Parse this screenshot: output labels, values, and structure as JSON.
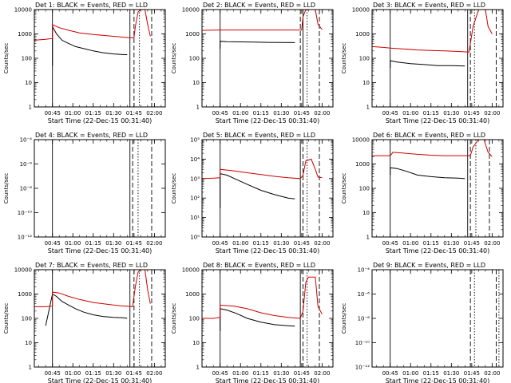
{
  "chart_data": [
    {
      "type": "line",
      "title": "Det 1: BLACK = Events, RED = LLD",
      "xlabel": "Start Time (22-Dec-15 00:31:40)",
      "ylabel": "Counts/sec",
      "yscale": "log",
      "ylim": [
        1,
        10000
      ],
      "ytick_labels": [
        "1",
        "10",
        "100",
        "1000",
        "10000"
      ],
      "xlim": [
        "00:31:40",
        "02:08:00"
      ],
      "xtick_labels": [
        "00:45",
        "01:00",
        "01:15",
        "01:30",
        "01:45",
        "02:00"
      ],
      "grid": false,
      "series": [
        {
          "name": "Events",
          "color": "#000000",
          "x": [
            "00:45",
            "00:45",
            "00:48",
            "00:52",
            "00:57",
            "01:02",
            "01:08",
            "01:15",
            "01:22",
            "01:30",
            "01:38",
            "01:40"
          ],
          "values": [
            50,
            2000,
            1000,
            550,
            400,
            300,
            250,
            200,
            170,
            150,
            140,
            140
          ]
        },
        {
          "name": "LLD",
          "color": "#cc0000",
          "x": [
            "00:31:40",
            "00:40",
            "00:45",
            "00:45",
            "00:50",
            "00:57",
            "01:05",
            "01:15",
            "01:25",
            "01:35",
            "01:42",
            "01:45",
            "01:46",
            "01:48",
            "01:50",
            "01:53",
            "01:55",
            "01:57"
          ],
          "values": [
            550,
            600,
            650,
            2400,
            1800,
            1400,
            1100,
            950,
            850,
            750,
            700,
            700,
            2000,
            8000,
            11000,
            11000,
            2500,
            800
          ]
        }
      ],
      "vlines": [
        {
          "x": "00:45",
          "style": "solid"
        },
        {
          "x": "01:42",
          "style": "solid"
        },
        {
          "x": "01:45",
          "style": "dashed"
        },
        {
          "x": "01:49",
          "style": "dotted"
        },
        {
          "x": "01:58",
          "style": "dashed"
        }
      ]
    },
    {
      "type": "line",
      "title": "Det 2: BLACK = Events, RED = LLD",
      "xlabel": "Start Time (22-Dec-15 00:31:40)",
      "ylabel": "Counts/sec",
      "yscale": "log",
      "ylim": [
        1,
        10000
      ],
      "ytick_labels": [
        "1",
        "10",
        "100",
        "1000",
        "10000"
      ],
      "xlim": [
        "00:31:40",
        "02:08:00"
      ],
      "xtick_labels": [
        "00:45",
        "01:00",
        "01:15",
        "01:30",
        "01:45",
        "02:00"
      ],
      "grid": false,
      "series": [
        {
          "name": "Events",
          "color": "#000000",
          "x": [
            "00:45",
            "00:45",
            "00:50",
            "01:00",
            "01:10",
            "01:20",
            "01:30",
            "01:40"
          ],
          "values": [
            250,
            500,
            480,
            470,
            460,
            450,
            445,
            440
          ]
        },
        {
          "name": "LLD",
          "color": "#cc0000",
          "x": [
            "00:31:40",
            "00:45",
            "01:00",
            "01:15",
            "01:30",
            "01:45",
            "01:46",
            "01:48",
            "01:50",
            "01:55",
            "01:57",
            "02:00"
          ],
          "values": [
            1400,
            1450,
            1450,
            1450,
            1450,
            1450,
            5000,
            15000,
            15000,
            15000,
            2500,
            1500
          ]
        }
      ],
      "vlines": [
        {
          "x": "00:45",
          "style": "solid"
        },
        {
          "x": "01:44",
          "style": "dashed"
        },
        {
          "x": "01:46",
          "style": "solid"
        },
        {
          "x": "01:49",
          "style": "dotted"
        },
        {
          "x": "01:58",
          "style": "dashed"
        }
      ]
    },
    {
      "type": "line",
      "title": "Det 3: BLACK = Events, RED = LLD",
      "xlabel": "Start Time (22-Dec-15 00:31:40)",
      "ylabel": "Counts/sec",
      "yscale": "log",
      "ylim": [
        1,
        10000
      ],
      "ytick_labels": [
        "1",
        "10",
        "100",
        "1000",
        "10000"
      ],
      "xlim": [
        "00:31:40",
        "02:08:00"
      ],
      "xtick_labels": [
        "00:45",
        "01:00",
        "01:15",
        "01:30",
        "01:45",
        "02:00"
      ],
      "grid": false,
      "series": [
        {
          "name": "Events",
          "color": "#000000",
          "x": [
            "00:45",
            "00:45",
            "00:50",
            "01:00",
            "01:10",
            "01:20",
            "01:30",
            "01:40"
          ],
          "values": [
            40,
            80,
            70,
            60,
            55,
            50,
            50,
            48
          ]
        },
        {
          "name": "LLD",
          "color": "#cc0000",
          "x": [
            "00:31:40",
            "00:40",
            "00:45",
            "00:55",
            "01:05",
            "01:15",
            "01:25",
            "01:35",
            "01:43",
            "01:46",
            "01:50",
            "01:55",
            "01:57",
            "02:00"
          ],
          "values": [
            300,
            280,
            260,
            240,
            220,
            210,
            200,
            190,
            180,
            2000,
            15000,
            15000,
            2000,
            1000
          ]
        }
      ],
      "vlines": [
        {
          "x": "00:45",
          "style": "solid"
        },
        {
          "x": "01:42",
          "style": "solid"
        },
        {
          "x": "01:44",
          "style": "dashed"
        },
        {
          "x": "01:47",
          "style": "dotted"
        },
        {
          "x": "02:03",
          "style": "dashed"
        }
      ]
    },
    {
      "type": "line",
      "title": "Det 4: BLACK = Events, RED = LLD",
      "xlabel": "Start Time (22-Dec-15 00:31:40)",
      "ylabel": "Counts/sec",
      "yscale": "log",
      "ylim": [
        1e-12,
        0.0001
      ],
      "ytick_labels": [
        "10⁻¹²",
        "10⁻¹⁰",
        "10⁻⁸",
        "10⁻⁶",
        "10⁻⁴"
      ],
      "xlim": [
        "00:31:40",
        "02:08:00"
      ],
      "xtick_labels": [
        "00:45",
        "01:00",
        "01:15",
        "01:30",
        "01:45",
        "02:00"
      ],
      "grid": false,
      "series": [],
      "vlines": [
        {
          "x": "00:45",
          "style": "solid"
        },
        {
          "x": "01:42",
          "style": "solid"
        },
        {
          "x": "01:44",
          "style": "dashed"
        },
        {
          "x": "01:48",
          "style": "dotted"
        },
        {
          "x": "01:58",
          "style": "dashed"
        }
      ]
    },
    {
      "type": "line",
      "title": "Det 5: BLACK = Events, RED = LLD",
      "xlabel": "Start Time (22-Dec-15 00:31:40)",
      "ylabel": "Counts/sec",
      "yscale": "log",
      "ylim": [
        1,
        100000
      ],
      "ytick_labels": [
        "10⁰",
        "10¹",
        "10²",
        "10³",
        "10⁴",
        "10⁵"
      ],
      "xlim": [
        "00:31:40",
        "02:08:00"
      ],
      "xtick_labels": [
        "00:45",
        "01:00",
        "01:15",
        "01:30",
        "01:45",
        "02:00"
      ],
      "grid": false,
      "series": [
        {
          "name": "Events",
          "color": "#000000",
          "x": [
            "00:45",
            "00:45",
            "00:50",
            "00:57",
            "01:05",
            "01:15",
            "01:25",
            "01:35",
            "01:40"
          ],
          "values": [
            30,
            1800,
            1500,
            900,
            500,
            250,
            150,
            100,
            90
          ]
        },
        {
          "name": "LLD",
          "color": "#cc0000",
          "x": [
            "00:31:40",
            "00:40",
            "00:45",
            "00:45",
            "00:55",
            "01:05",
            "01:15",
            "01:25",
            "01:35",
            "01:44",
            "01:46",
            "01:48",
            "01:52",
            "01:55",
            "01:57",
            "02:00"
          ],
          "values": [
            1000,
            1050,
            1100,
            3000,
            2500,
            2000,
            1600,
            1300,
            1100,
            1000,
            1500,
            8000,
            10000,
            3000,
            1200,
            1100
          ]
        }
      ],
      "vlines": [
        {
          "x": "00:45",
          "style": "solid"
        },
        {
          "x": "01:44",
          "style": "solid"
        },
        {
          "x": "01:46",
          "style": "dashed"
        },
        {
          "x": "01:49",
          "style": "dotted"
        },
        {
          "x": "01:58",
          "style": "dashed"
        }
      ]
    },
    {
      "type": "line",
      "title": "Det 6: BLACK = Events, RED = LLD",
      "xlabel": "Start Time (22-Dec-15 00:31:40)",
      "ylabel": "Counts/sec",
      "yscale": "log",
      "ylim": [
        1,
        10000
      ],
      "ytick_labels": [
        "1",
        "10",
        "100",
        "1000",
        "10000"
      ],
      "xlim": [
        "00:31:40",
        "02:08:00"
      ],
      "xtick_labels": [
        "00:45",
        "01:00",
        "01:15",
        "01:30",
        "01:45",
        "02:00"
      ],
      "grid": false,
      "series": [
        {
          "name": "Events",
          "color": "#000000",
          "x": [
            "00:45",
            "00:45",
            "00:50",
            "00:57",
            "01:05",
            "01:15",
            "01:25",
            "01:35",
            "01:40"
          ],
          "values": [
            350,
            700,
            650,
            500,
            350,
            300,
            270,
            260,
            250
          ]
        },
        {
          "name": "LLD",
          "color": "#cc0000",
          "x": [
            "00:31:40",
            "00:45",
            "00:47",
            "00:55",
            "01:05",
            "01:15",
            "01:25",
            "01:35",
            "01:44",
            "01:46",
            "01:50",
            "01:54",
            "01:57",
            "02:00"
          ],
          "values": [
            2200,
            2200,
            3000,
            2800,
            2500,
            2300,
            2200,
            2200,
            2200,
            5000,
            10000,
            10000,
            3000,
            2000
          ]
        }
      ],
      "vlines": [
        {
          "x": "00:45",
          "style": "solid"
        },
        {
          "x": "01:42",
          "style": "solid"
        },
        {
          "x": "01:44",
          "style": "dashed"
        },
        {
          "x": "01:48",
          "style": "dotted"
        },
        {
          "x": "01:58",
          "style": "dashed"
        }
      ]
    },
    {
      "type": "line",
      "title": "Det 7: BLACK = Events, RED = LLD",
      "xlabel": "Start Time (22-Dec-15 00:31:40)",
      "ylabel": "Counts/sec",
      "yscale": "log",
      "ylim": [
        1,
        10000
      ],
      "ytick_labels": [
        "1",
        "10",
        "100",
        "1000",
        "10000"
      ],
      "xlim": [
        "00:31:40",
        "02:08:00"
      ],
      "xtick_labels": [
        "00:45",
        "01:00",
        "01:15",
        "01:30",
        "01:45",
        "02:00"
      ],
      "grid": false,
      "series": [
        {
          "name": "Events",
          "color": "#000000",
          "x": [
            "00:40",
            "00:45",
            "00:48",
            "00:52",
            "00:57",
            "01:02",
            "01:08",
            "01:15",
            "01:22",
            "01:30",
            "01:38",
            "01:40"
          ],
          "values": [
            50,
            1000,
            800,
            500,
            350,
            250,
            180,
            140,
            120,
            110,
            105,
            100
          ]
        },
        {
          "name": "LLD",
          "color": "#cc0000",
          "x": [
            "00:31:40",
            "00:40",
            "00:45",
            "00:45",
            "00:50",
            "00:57",
            "01:05",
            "01:15",
            "01:25",
            "01:35",
            "01:42",
            "01:44",
            "01:46",
            "01:48",
            "01:50",
            "01:53",
            "01:55",
            "01:57"
          ],
          "values": [
            300,
            300,
            320,
            1200,
            1100,
            800,
            600,
            450,
            380,
            330,
            310,
            300,
            2000,
            8000,
            10000,
            10000,
            1500,
            400
          ]
        }
      ],
      "vlines": [
        {
          "x": "00:45",
          "style": "solid"
        },
        {
          "x": "01:42",
          "style": "solid"
        },
        {
          "x": "01:45",
          "style": "dashed"
        },
        {
          "x": "01:49",
          "style": "dotted"
        },
        {
          "x": "01:58",
          "style": "dashed"
        }
      ]
    },
    {
      "type": "line",
      "title": "Det 8: BLACK = Events, RED = LLD",
      "xlabel": "Start Time (22-Dec-15 00:31:40)",
      "ylabel": "Counts/sec",
      "yscale": "log",
      "ylim": [
        1,
        10000
      ],
      "ytick_labels": [
        "1",
        "10",
        "100",
        "1000",
        "10000"
      ],
      "xlim": [
        "00:31:40",
        "02:08:00"
      ],
      "xtick_labels": [
        "00:45",
        "01:00",
        "01:15",
        "01:30",
        "01:45",
        "02:00"
      ],
      "grid": false,
      "series": [
        {
          "name": "Events",
          "color": "#000000",
          "x": [
            "00:45",
            "00:45",
            "00:50",
            "00:57",
            "01:05",
            "01:15",
            "01:25",
            "01:35",
            "01:40"
          ],
          "values": [
            30,
            250,
            220,
            160,
            100,
            70,
            55,
            50,
            48
          ]
        },
        {
          "name": "LLD",
          "color": "#cc0000",
          "x": [
            "00:31:40",
            "00:40",
            "00:45",
            "00:45",
            "00:55",
            "01:05",
            "01:15",
            "01:25",
            "01:35",
            "01:44",
            "01:46",
            "01:48",
            "01:50",
            "01:55",
            "01:57",
            "02:00"
          ],
          "values": [
            100,
            100,
            110,
            350,
            320,
            250,
            170,
            130,
            110,
            100,
            200,
            3000,
            5000,
            5000,
            300,
            150
          ]
        }
      ],
      "vlines": [
        {
          "x": "00:45",
          "style": "solid"
        },
        {
          "x": "01:44",
          "style": "solid"
        },
        {
          "x": "01:46",
          "style": "dashed"
        },
        {
          "x": "01:49",
          "style": "dotted"
        },
        {
          "x": "01:58",
          "style": "dashed"
        }
      ]
    },
    {
      "type": "line",
      "title": "Det 9: BLACK = Events, RED = LLD",
      "xlabel": "Start Time (22-Dec-15 00:31:40)",
      "ylabel": "Counts/sec",
      "yscale": "log",
      "ylim": [
        1e-12,
        0.0001
      ],
      "ytick_labels": [
        "10⁻¹²",
        "10⁻¹⁰",
        "10⁻⁸",
        "10⁻⁶",
        "10⁻⁴"
      ],
      "xlim": [
        "00:31:40",
        "02:08:00"
      ],
      "xtick_labels": [
        "00:45",
        "01:00",
        "01:15",
        "01:30",
        "01:45",
        "02:00"
      ],
      "grid": false,
      "series": [],
      "vlines": [
        {
          "x": "00:45",
          "style": "solid"
        },
        {
          "x": "01:44",
          "style": "dashed"
        },
        {
          "x": "01:47",
          "style": "dotted"
        },
        {
          "x": "02:03",
          "style": "dashed"
        },
        {
          "x": "02:05",
          "style": "dotted"
        }
      ]
    }
  ]
}
